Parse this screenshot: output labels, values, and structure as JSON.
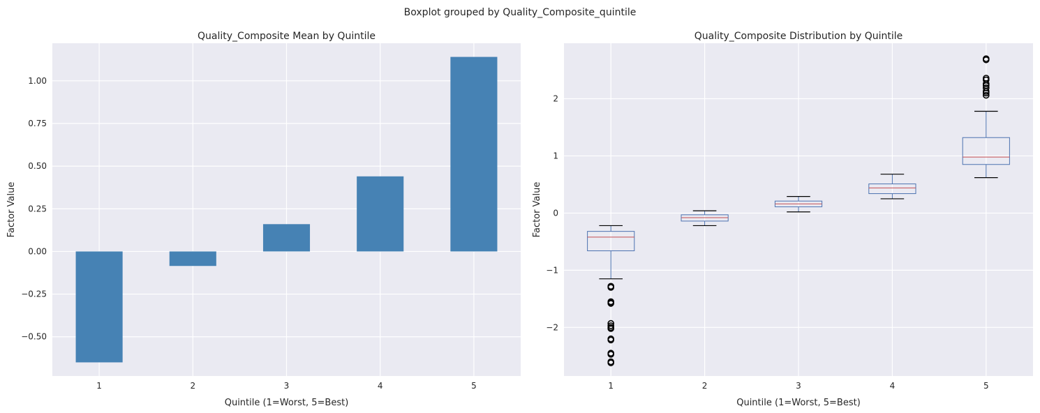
{
  "figure": {
    "suptitle": "Boxplot grouped by Quality_Composite_quintile"
  },
  "colors": {
    "plot_bg": "#eaeaf2",
    "grid": "#ffffff",
    "bar": "#4682b4",
    "box": "#4c72b0",
    "median": "#c44e52",
    "whisker_cap": "#000000",
    "flier": "#000000"
  },
  "chart_data": [
    {
      "type": "bar",
      "title": "Quality_Composite Mean by Quintile",
      "xlabel": "Quintile (1=Worst, 5=Best)",
      "ylabel": "Factor Value",
      "categories": [
        "1",
        "2",
        "3",
        "4",
        "5"
      ],
      "values": [
        -0.65,
        -0.085,
        0.16,
        0.44,
        1.14
      ],
      "ylim": [
        -0.73,
        1.22
      ],
      "yticks": [
        -0.5,
        -0.25,
        0.0,
        0.25,
        0.5,
        0.75,
        1.0
      ],
      "ytick_labels": [
        "−0.50",
        "−0.25",
        "0.00",
        "0.25",
        "0.50",
        "0.75",
        "1.00"
      ],
      "grid": true,
      "legend": "none"
    },
    {
      "type": "box",
      "title": "Quality_Composite Distribution by Quintile",
      "xlabel": "Quintile (1=Worst, 5=Best)",
      "ylabel": "Factor Value",
      "categories": [
        "1",
        "2",
        "3",
        "4",
        "5"
      ],
      "boxes": [
        {
          "whislo": -1.15,
          "q1": -0.66,
          "med": -0.42,
          "q3": -0.32,
          "whishi": -0.22,
          "fliers": [
            -1.28,
            -1.3,
            -1.55,
            -1.57,
            -1.58,
            -1.93,
            -1.97,
            -2.0,
            -2.02,
            -2.2,
            -2.22,
            -2.45,
            -2.47,
            -2.6,
            -2.62
          ]
        },
        {
          "whislo": -0.22,
          "q1": -0.14,
          "med": -0.08,
          "q3": -0.03,
          "whishi": 0.04,
          "fliers": []
        },
        {
          "whislo": 0.02,
          "q1": 0.11,
          "med": 0.16,
          "q3": 0.21,
          "whishi": 0.29,
          "fliers": []
        },
        {
          "whislo": 0.25,
          "q1": 0.34,
          "med": 0.44,
          "q3": 0.51,
          "whishi": 0.68,
          "fliers": []
        },
        {
          "whislo": 0.62,
          "q1": 0.85,
          "med": 0.98,
          "q3": 1.32,
          "whishi": 1.78,
          "fliers": [
            2.06,
            2.1,
            2.13,
            2.19,
            2.23,
            2.26,
            2.33,
            2.36,
            2.68,
            2.7
          ]
        }
      ],
      "ylim": [
        -2.85,
        2.97
      ],
      "yticks": [
        -2,
        -1,
        0,
        1,
        2
      ],
      "ytick_labels": [
        "−2",
        "−1",
        "0",
        "1",
        "2"
      ],
      "grid": true,
      "legend": "none"
    }
  ]
}
